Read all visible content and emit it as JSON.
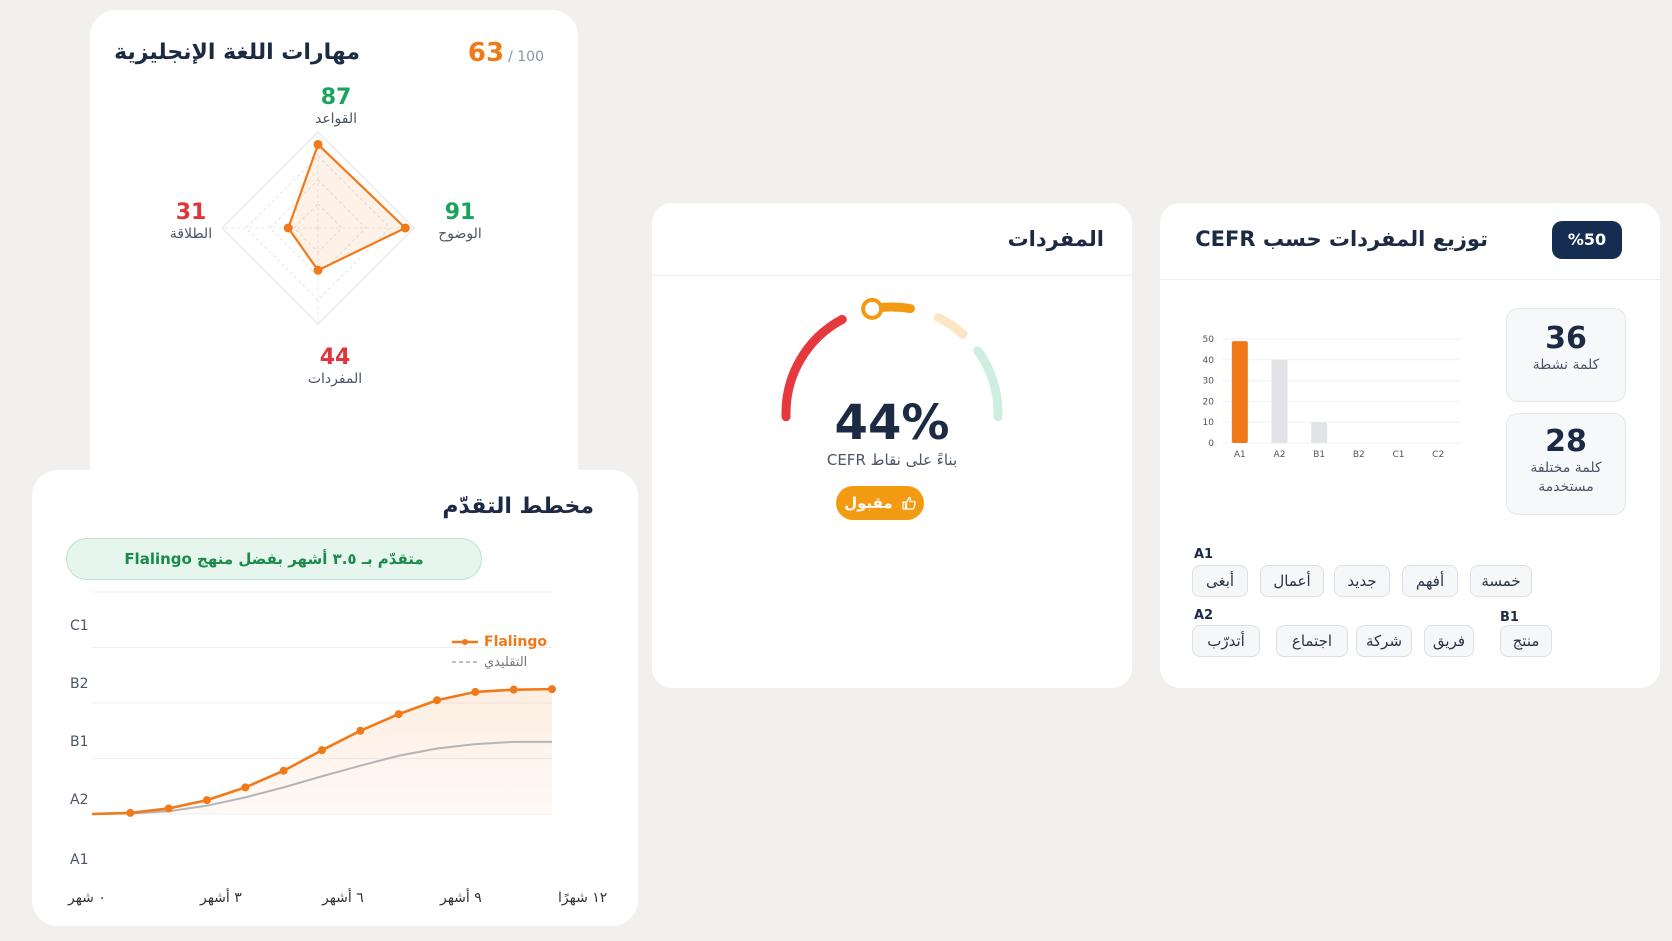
{
  "skills": {
    "title": "مهارات اللغة الإنجليزية",
    "score": "63",
    "max": "/ 100",
    "items": [
      {
        "name": "القواعد",
        "value": 87,
        "color": "#1aa35c"
      },
      {
        "name": "الوضوح",
        "value": 91,
        "color": "#1aa35c"
      },
      {
        "name": "المفردات",
        "value": 44,
        "color": "#e0353b"
      },
      {
        "name": "الطلاقة",
        "value": 31,
        "color": "#e0353b"
      }
    ]
  },
  "progress": {
    "title": "مخطط التقدّم",
    "banner": "متقدّم بـ ٣.٥ أشهر بفضل منهج Flalingo",
    "legend": {
      "flalingo": "Flalingo",
      "traditional": "التقليدي"
    },
    "y_levels": [
      "C1",
      "B2",
      "B1",
      "A2",
      "A1"
    ],
    "x_labels": [
      "٠ شهر",
      "٣ أشهر",
      "٦ أشهر",
      "٩ أشهر",
      "١٢ شهرًا"
    ]
  },
  "chart_data": [
    {
      "type": "radar",
      "axes": [
        "القواعد",
        "الوضوح",
        "المفردات",
        "الطلاقة"
      ],
      "values": [
        87,
        91,
        44,
        31
      ],
      "max": 100
    },
    {
      "type": "line",
      "x": [
        0,
        1,
        2,
        3,
        4,
        5,
        6,
        7,
        8,
        9,
        10,
        11,
        12
      ],
      "y_categories": [
        "A1",
        "A2",
        "B1",
        "B2",
        "C1"
      ],
      "series": [
        {
          "name": "Flalingo",
          "color": "#f07a1a",
          "values": [
            0,
            0.02,
            0.1,
            0.25,
            0.48,
            0.78,
            1.15,
            1.5,
            1.8,
            2.05,
            2.2,
            2.24,
            2.25
          ]
        },
        {
          "name": "التقليدي",
          "color": "#b5b5b5",
          "values": [
            0,
            0.01,
            0.05,
            0.15,
            0.3,
            0.48,
            0.68,
            0.87,
            1.05,
            1.18,
            1.26,
            1.3,
            1.3
          ]
        }
      ]
    },
    {
      "type": "bar",
      "categories": [
        "A1",
        "A2",
        "B1",
        "B2",
        "C1",
        "C2"
      ],
      "values": [
        49,
        40,
        10,
        0,
        0,
        0
      ],
      "ylim": [
        0,
        50
      ],
      "yticks": [
        0,
        10,
        20,
        30,
        40,
        50
      ],
      "highlight": "A1",
      "colors": {
        "highlight": "#f07a1a",
        "other": "#e2e3e7"
      }
    }
  ],
  "vocab": {
    "title": "المفردات",
    "percent": 44,
    "value_text": "44%",
    "caption": "بناءً على نقاط CEFR",
    "badge": "مقبول"
  },
  "cefr": {
    "title": "توزيع المفردات حسب CEFR",
    "badge": "%50",
    "stats": [
      {
        "num": "36",
        "label": "كلمة نشطة"
      },
      {
        "num": "28",
        "label": "كلمة مختلفة مستخدمة"
      }
    ],
    "groups": [
      {
        "level": "A1",
        "words": [
          "خمسة",
          "أفهم",
          "جديد",
          "أعمال",
          "أبغى"
        ]
      },
      {
        "level": "A2",
        "words": [
          "فريق",
          "شركة",
          "اجتماع",
          "أتدرّب"
        ]
      },
      {
        "level": "B1",
        "words": [
          "منتج"
        ]
      }
    ]
  }
}
